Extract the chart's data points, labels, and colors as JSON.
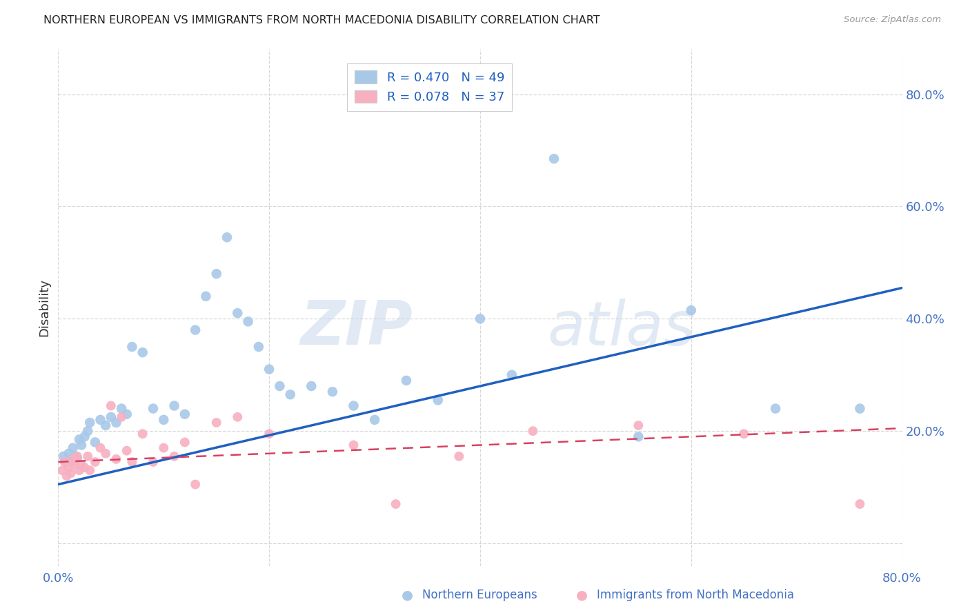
{
  "title": "NORTHERN EUROPEAN VS IMMIGRANTS FROM NORTH MACEDONIA DISABILITY CORRELATION CHART",
  "source": "Source: ZipAtlas.com",
  "ylabel": "Disability",
  "xlim": [
    0.0,
    0.8
  ],
  "ylim": [
    -0.04,
    0.88
  ],
  "ytick_values": [
    0.0,
    0.2,
    0.4,
    0.6,
    0.8
  ],
  "xtick_values": [
    0.0,
    0.2,
    0.4,
    0.6,
    0.8
  ],
  "blue_R": 0.47,
  "blue_N": 49,
  "pink_R": 0.078,
  "pink_N": 37,
  "blue_color": "#a8c8e8",
  "blue_line_color": "#2060c0",
  "pink_color": "#f8b0c0",
  "pink_line_color": "#d84060",
  "blue_scatter_x": [
    0.005,
    0.008,
    0.01,
    0.012,
    0.014,
    0.015,
    0.016,
    0.018,
    0.02,
    0.022,
    0.025,
    0.028,
    0.03,
    0.035,
    0.04,
    0.045,
    0.05,
    0.055,
    0.06,
    0.065,
    0.07,
    0.08,
    0.09,
    0.1,
    0.11,
    0.12,
    0.13,
    0.14,
    0.15,
    0.16,
    0.17,
    0.18,
    0.19,
    0.2,
    0.21,
    0.22,
    0.24,
    0.26,
    0.28,
    0.3,
    0.33,
    0.36,
    0.4,
    0.43,
    0.47,
    0.55,
    0.6,
    0.68,
    0.76
  ],
  "blue_scatter_y": [
    0.155,
    0.145,
    0.16,
    0.15,
    0.17,
    0.148,
    0.155,
    0.152,
    0.185,
    0.175,
    0.19,
    0.2,
    0.215,
    0.18,
    0.22,
    0.21,
    0.225,
    0.215,
    0.24,
    0.23,
    0.35,
    0.34,
    0.24,
    0.22,
    0.245,
    0.23,
    0.38,
    0.44,
    0.48,
    0.545,
    0.41,
    0.395,
    0.35,
    0.31,
    0.28,
    0.265,
    0.28,
    0.27,
    0.245,
    0.22,
    0.29,
    0.255,
    0.4,
    0.3,
    0.685,
    0.19,
    0.415,
    0.24,
    0.24
  ],
  "pink_scatter_x": [
    0.004,
    0.006,
    0.008,
    0.01,
    0.012,
    0.014,
    0.016,
    0.018,
    0.02,
    0.022,
    0.025,
    0.028,
    0.03,
    0.035,
    0.04,
    0.045,
    0.05,
    0.055,
    0.06,
    0.065,
    0.07,
    0.08,
    0.09,
    0.1,
    0.11,
    0.12,
    0.13,
    0.15,
    0.17,
    0.2,
    0.28,
    0.32,
    0.38,
    0.45,
    0.55,
    0.65,
    0.76
  ],
  "pink_scatter_y": [
    0.13,
    0.145,
    0.12,
    0.135,
    0.125,
    0.15,
    0.14,
    0.155,
    0.13,
    0.14,
    0.135,
    0.155,
    0.13,
    0.145,
    0.17,
    0.16,
    0.245,
    0.15,
    0.225,
    0.165,
    0.145,
    0.195,
    0.145,
    0.17,
    0.155,
    0.18,
    0.105,
    0.215,
    0.225,
    0.195,
    0.175,
    0.07,
    0.155,
    0.2,
    0.21,
    0.195,
    0.07
  ],
  "blue_line_x0": 0.0,
  "blue_line_y0": 0.105,
  "blue_line_x1": 0.8,
  "blue_line_y1": 0.455,
  "pink_line_x0": 0.0,
  "pink_line_y0": 0.145,
  "pink_line_x1": 0.8,
  "pink_line_y1": 0.205,
  "watermark_zip": "ZIP",
  "watermark_atlas": "atlas",
  "background_color": "#ffffff",
  "grid_color": "#d8d8d8",
  "text_color": "#4472c4"
}
